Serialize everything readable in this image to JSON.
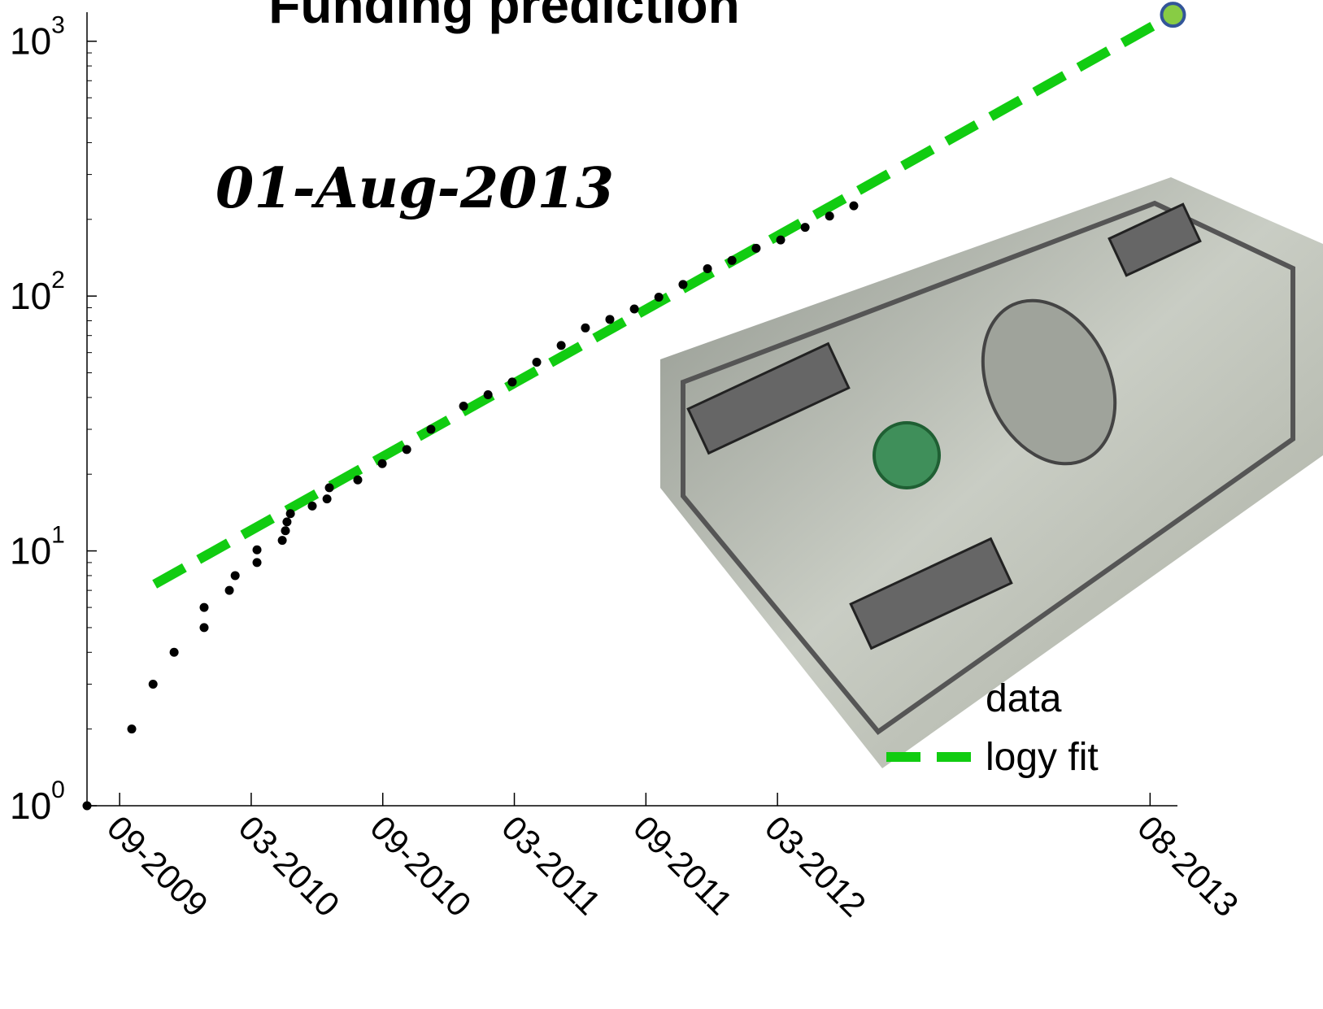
{
  "chart_data": {
    "type": "scatter",
    "title": "Funding prediction",
    "annotation": "01-Aug-2013",
    "log_y": true,
    "xlim": [
      2009.543,
      2013.687
    ],
    "ylim": [
      1,
      1300
    ],
    "xticks": [
      {
        "value": 2009.667,
        "label": "09-2009"
      },
      {
        "value": 2010.167,
        "label": "03-2010"
      },
      {
        "value": 2010.667,
        "label": "09-2010"
      },
      {
        "value": 2011.167,
        "label": "03-2011"
      },
      {
        "value": 2011.667,
        "label": "09-2011"
      },
      {
        "value": 2012.167,
        "label": "03-2012"
      },
      {
        "value": 2013.583,
        "label": "08-2013"
      }
    ],
    "yticks": [
      {
        "value": 1,
        "label": "10",
        "exponent": "0"
      },
      {
        "value": 10,
        "label": "10",
        "exponent": "1"
      },
      {
        "value": 100,
        "label": "10",
        "exponent": "2"
      },
      {
        "value": 1000,
        "label": "10",
        "exponent": "3"
      }
    ],
    "legend": "lower right",
    "series": [
      {
        "name": "data",
        "color": "#000000",
        "style": "dots",
        "x": [
          2009.543,
          2009.713,
          2009.794,
          2009.874,
          2009.988,
          2009.988,
          2010.084,
          2010.106,
          2010.189,
          2010.189,
          2010.285,
          2010.297,
          2010.303,
          2010.316,
          2010.399,
          2010.455,
          2010.464,
          2010.572,
          2010.665,
          2010.758,
          2010.85,
          2010.974,
          2011.067,
          2011.159,
          2011.252,
          2011.345,
          2011.437,
          2011.53,
          2011.623,
          2011.716,
          2011.808,
          2011.901,
          2011.994,
          2012.086,
          2012.179,
          2012.272,
          2012.365,
          2012.457
        ],
        "values": [
          1,
          2,
          3,
          4,
          5,
          6,
          7,
          8,
          9,
          10.1,
          11,
          12,
          13,
          14,
          15,
          16,
          17.7,
          19,
          22,
          25,
          30,
          37,
          41,
          46,
          55,
          64,
          75,
          81,
          89,
          99,
          111,
          128,
          138,
          154,
          166,
          186,
          206,
          226
        ]
      },
      {
        "name": "logy fit",
        "color": "#11cc11",
        "style": "dashed",
        "x": [
          2009.8,
          2013.67
        ],
        "values": [
          7.4,
          1270
        ]
      }
    ],
    "prediction": {
      "x": 2013.67,
      "value": 1270,
      "color": "#88cc44",
      "edge": "#335599"
    }
  }
}
